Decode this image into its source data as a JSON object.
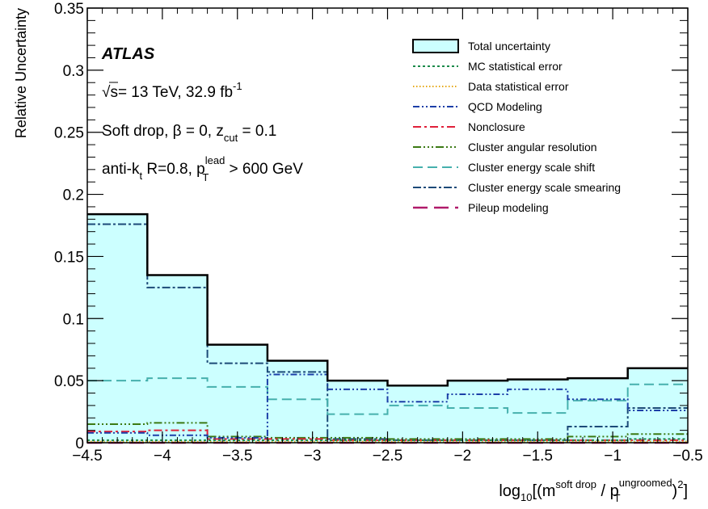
{
  "chart_data": {
    "type": "step",
    "ylabel": "Relative Uncertainty",
    "xlabel_parts": {
      "log": "log",
      "log_sub": "10",
      "open": "[(m",
      "m_sup": "soft drop",
      "slash": " / p",
      "pt_sub": "T",
      "pt_sup": "ungroomed",
      "square": "2",
      "close": ")",
      "close2": "]"
    },
    "xlim": [
      -4.5,
      -0.5
    ],
    "ylim": [
      0,
      0.35
    ],
    "x_ticks": [
      -4.5,
      -4,
      -3.5,
      -3,
      -2.5,
      -2,
      -1.5,
      -1,
      -0.5
    ],
    "x_tick_labels": [
      "−4.5",
      "−4",
      "−3.5",
      "−3",
      "−2.5",
      "−2",
      "−1.5",
      "−1",
      "−0.5"
    ],
    "y_ticks": [
      0,
      0.05,
      0.1,
      0.15,
      0.2,
      0.25,
      0.3,
      0.35
    ],
    "y_tick_labels": [
      "0",
      "0.05",
      "0.1",
      "0.15",
      "0.2",
      "0.25",
      "0.3",
      "0.35"
    ],
    "bin_edges": [
      -4.5,
      -4.1,
      -3.7,
      -3.3,
      -2.9,
      -2.5,
      -2.1,
      -1.7,
      -1.3,
      -0.9,
      -0.5
    ],
    "series": [
      {
        "name": "Total uncertainty",
        "color": "#000000",
        "fill": "#ccffff",
        "values": [
          0.184,
          0.135,
          0.079,
          0.066,
          0.05,
          0.046,
          0.05,
          0.051,
          0.052,
          0.06
        ]
      },
      {
        "name": "MC statistical error",
        "color": "#1a8a4a",
        "values": [
          0.002,
          0.002,
          0.002,
          0.002,
          0.002,
          0.002,
          0.002,
          0.002,
          0.002,
          0.003
        ]
      },
      {
        "name": "Data statistical error",
        "color": "#e6a817",
        "values": [
          0.001,
          0.001,
          0.001,
          0.001,
          0.001,
          0.001,
          0.001,
          0.001,
          0.001,
          0.001
        ]
      },
      {
        "name": "QCD Modeling",
        "color": "#1c3fa8",
        "values": [
          0.008,
          0.006,
          0.004,
          0.055,
          0.043,
          0.033,
          0.039,
          0.043,
          0.035,
          0.026
        ]
      },
      {
        "name": "Nonclosure",
        "color": "#e0203a",
        "values": [
          0.009,
          0.01,
          0.003,
          0.003,
          0.002,
          0.002,
          0.002,
          0.002,
          0.002,
          0.002
        ]
      },
      {
        "name": "Cluster angular resolution",
        "color": "#3c7a14",
        "values": [
          0.015,
          0.016,
          0.005,
          0.004,
          0.004,
          0.003,
          0.003,
          0.003,
          0.005,
          0.007
        ]
      },
      {
        "name": "Cluster energy scale shift",
        "color": "#46b0ad",
        "values": [
          0.05,
          0.052,
          0.045,
          0.035,
          0.023,
          0.03,
          0.028,
          0.024,
          0.034,
          0.047
        ]
      },
      {
        "name": "Cluster energy scale smearing",
        "color": "#1c4a78",
        "values": [
          0.176,
          0.125,
          0.064,
          0.057,
          0.003,
          0.002,
          0.002,
          0.002,
          0.013,
          0.028
        ]
      },
      {
        "name": "Pileup modeling",
        "color": "#b01a6a",
        "values": [
          0.0,
          0.0,
          0.0,
          0.0,
          0.0,
          0.0,
          0.0,
          0.0,
          0.0,
          0.0
        ]
      }
    ],
    "annotations": {
      "atlas": "ATLAS",
      "sqrt_symbol": "√",
      "energy_s": "s",
      "energy_rest": "= 13 TeV, 32.9 fb",
      "energy_sup": "-1",
      "softdrop_main": "Soft drop, β = 0, z",
      "softdrop_sub": "cut",
      "softdrop_end": " = 0.1",
      "jet_main": "anti-k",
      "jet_sub": "t",
      "jet_mid": " R=0.8, p",
      "jet_sup": "lead",
      "jet_sub2": "T",
      "jet_end": " > 600 GeV"
    },
    "legend_position": "top-right",
    "grid": false
  }
}
